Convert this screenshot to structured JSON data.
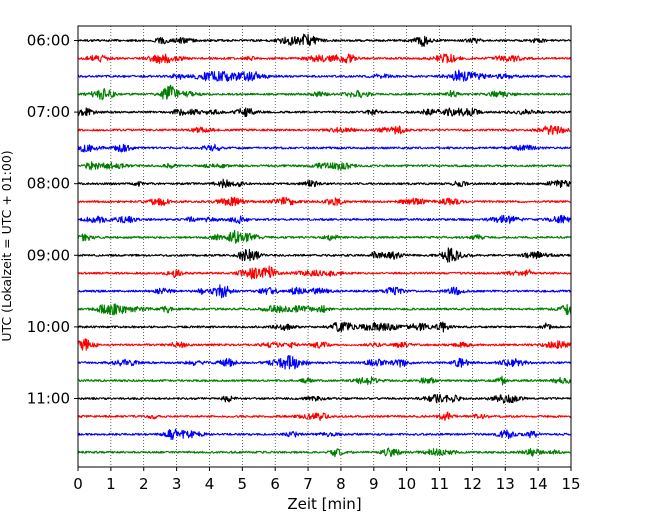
{
  "chart_data": {
    "type": "line",
    "title": "",
    "xlabel": "Zeit  [min]",
    "ylabel": "UTC (Lokalzeit = UTC + 01:00)",
    "xlim": [
      0,
      15
    ],
    "x_ticks": [
      "0",
      "1",
      "2",
      "3",
      "4",
      "5",
      "6",
      "7",
      "8",
      "9",
      "10",
      "11",
      "12",
      "13",
      "14",
      "15"
    ],
    "y_tick_labels": [
      "06:00",
      "07:00",
      "08:00",
      "09:00",
      "10:00",
      "11:00"
    ],
    "grid": "vertical dotted",
    "legend": "none",
    "trace_interval_minutes": 15,
    "colors": [
      "#000000",
      "#ff0000",
      "#0000ff",
      "#007f00"
    ],
    "series": [
      {
        "start": "06:00",
        "color": "#000000"
      },
      {
        "start": "06:15",
        "color": "#ff0000"
      },
      {
        "start": "06:30",
        "color": "#0000ff"
      },
      {
        "start": "06:45",
        "color": "#007f00"
      },
      {
        "start": "07:00",
        "color": "#000000"
      },
      {
        "start": "07:15",
        "color": "#ff0000"
      },
      {
        "start": "07:30",
        "color": "#0000ff"
      },
      {
        "start": "07:45",
        "color": "#007f00"
      },
      {
        "start": "08:00",
        "color": "#000000"
      },
      {
        "start": "08:15",
        "color": "#ff0000"
      },
      {
        "start": "08:30",
        "color": "#0000ff"
      },
      {
        "start": "08:45",
        "color": "#007f00"
      },
      {
        "start": "09:00",
        "color": "#000000"
      },
      {
        "start": "09:15",
        "color": "#ff0000"
      },
      {
        "start": "09:30",
        "color": "#0000ff"
      },
      {
        "start": "09:45",
        "color": "#007f00"
      },
      {
        "start": "10:00",
        "color": "#000000"
      },
      {
        "start": "10:15",
        "color": "#ff0000"
      },
      {
        "start": "10:30",
        "color": "#0000ff"
      },
      {
        "start": "10:45",
        "color": "#007f00"
      },
      {
        "start": "11:00",
        "color": "#000000"
      },
      {
        "start": "11:15",
        "color": "#ff0000"
      },
      {
        "start": "11:30",
        "color": "#0000ff"
      },
      {
        "start": "11:45",
        "color": "#007f00"
      }
    ]
  }
}
